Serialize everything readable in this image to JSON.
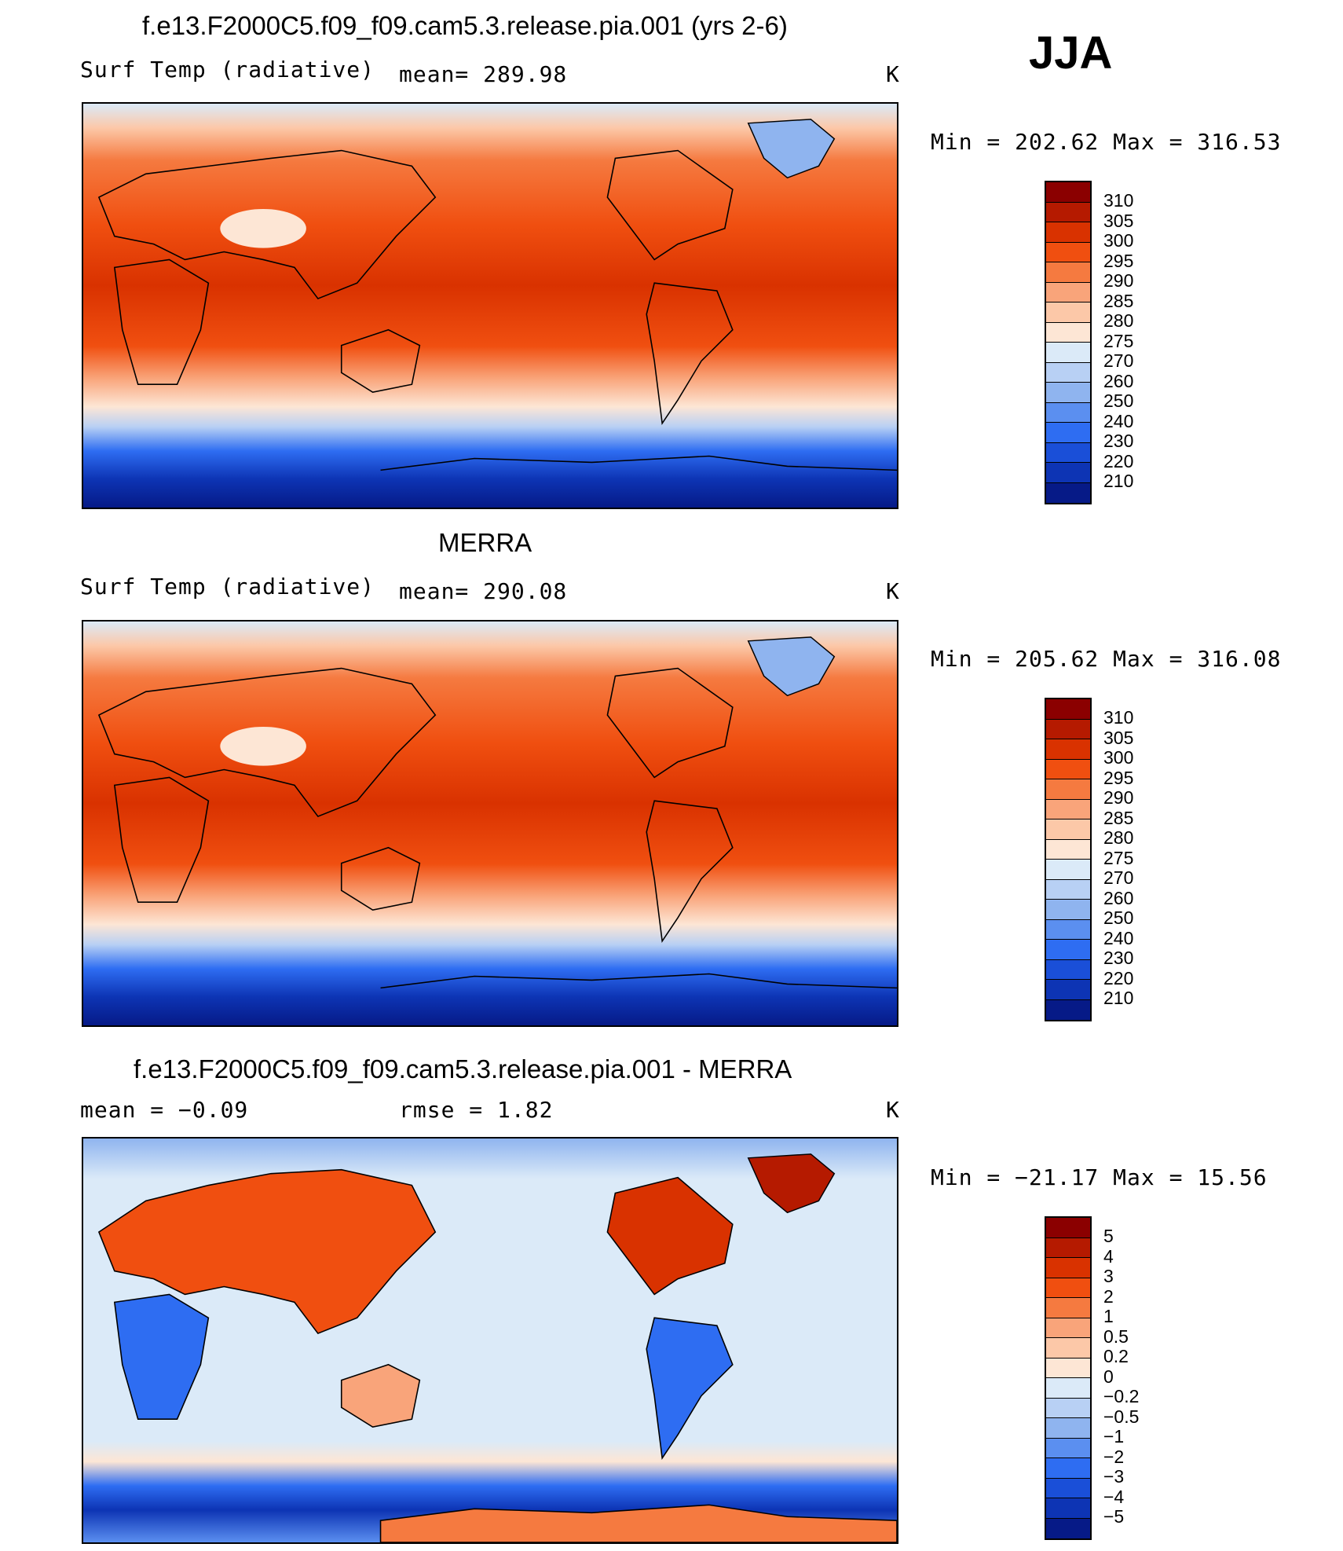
{
  "season": "JJA",
  "panels": [
    {
      "title": "f.e13.F2000C5.f09_f09.cam5.3.release.pia.001 (yrs 2-6)",
      "left_label": "Surf Temp (radiative)",
      "center_label": "mean= 289.98",
      "units": "K",
      "minmax": "Min = 202.62 Max = 316.53",
      "scale": "abs"
    },
    {
      "title": "MERRA",
      "left_label": "Surf Temp (radiative)",
      "center_label": "mean= 290.08",
      "units": "K",
      "minmax": "Min = 205.62 Max = 316.08",
      "scale": "abs"
    },
    {
      "title": "f.e13.F2000C5.f09_f09.cam5.3.release.pia.001 - MERRA",
      "left_label": "mean = −0.09",
      "center_label": "rmse =   1.82",
      "units": "K",
      "minmax": "Min = −21.17 Max =  15.56",
      "scale": "diff"
    }
  ],
  "colorbars": {
    "abs": {
      "labels": [
        "310",
        "305",
        "300",
        "295",
        "290",
        "285",
        "280",
        "275",
        "270",
        "260",
        "250",
        "240",
        "230",
        "220",
        "210"
      ],
      "colors": [
        "#8b0000",
        "#b51a00",
        "#d93200",
        "#f04f10",
        "#f57a40",
        "#f9a47a",
        "#fcc8a8",
        "#fde6d5",
        "#dbeaf8",
        "#b8d0f4",
        "#8fb4ef",
        "#5b8ff0",
        "#2e6df2",
        "#1a4fd8",
        "#0d34b4",
        "#061a87"
      ]
    },
    "diff": {
      "labels": [
        "5",
        "4",
        "3",
        "2",
        "1",
        "0.5",
        "0.2",
        "0",
        "−0.2",
        "−0.5",
        "−1",
        "−2",
        "−3",
        "−4",
        "−5"
      ],
      "colors": [
        "#8b0000",
        "#b51a00",
        "#d93200",
        "#f04f10",
        "#f57a40",
        "#f9a47a",
        "#fcc8a8",
        "#fde6d5",
        "#dbeaf8",
        "#b8d0f4",
        "#8fb4ef",
        "#5b8ff0",
        "#2e6df2",
        "#1a4fd8",
        "#0d34b4",
        "#061a87"
      ]
    }
  }
}
